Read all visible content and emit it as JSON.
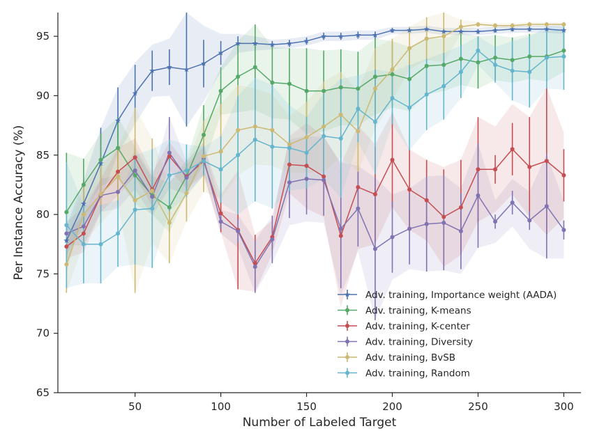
{
  "chart_data": {
    "type": "line",
    "title": "",
    "xlabel": "Number of Labeled Target",
    "ylabel": "Per Instance Accuracy (%)",
    "xlim": [
      5,
      310
    ],
    "ylim": [
      65,
      97
    ],
    "xticks": [
      50,
      100,
      150,
      200,
      250,
      300
    ],
    "yticks": [
      65,
      70,
      75,
      80,
      85,
      90,
      95
    ],
    "grid": false,
    "legend_position": "lower-right",
    "x": [
      10,
      20,
      30,
      40,
      50,
      60,
      70,
      80,
      90,
      100,
      110,
      120,
      130,
      140,
      150,
      160,
      170,
      180,
      190,
      200,
      210,
      220,
      230,
      240,
      250,
      260,
      270,
      280,
      290,
      300
    ],
    "series": [
      {
        "name": "Adv. training, Importance weight (AADA)",
        "color": "#4c72b0",
        "marker": "star",
        "values": [
          77.8,
          80.9,
          84.3,
          87.9,
          90.2,
          92.1,
          92.4,
          92.2,
          92.7,
          93.6,
          94.4,
          94.4,
          94.3,
          94.4,
          94.6,
          95.0,
          95.0,
          95.1,
          95.1,
          95.5,
          95.5,
          95.6,
          95.4,
          95.4,
          95.4,
          95.5,
          95.6,
          95.6,
          95.6,
          95.5
        ],
        "err": [
          1.2,
          2.0,
          3.0,
          2.8,
          2.4,
          1.7,
          1.5,
          4.8,
          2.0,
          1.0,
          0.6,
          0.5,
          0.3,
          0.3,
          0.3,
          0.3,
          0.3,
          0.3,
          0.3,
          0.2,
          0.2,
          0.2,
          0.2,
          0.2,
          0.2,
          0.2,
          0.2,
          0.2,
          0.2,
          0.2
        ],
        "band": [
          1.2,
          2.0,
          3.0,
          2.8,
          2.6,
          2.2,
          2.4,
          4.8,
          3.2,
          1.6,
          0.8,
          0.6,
          0.4,
          0.4,
          0.4,
          0.4,
          0.4,
          0.4,
          0.4,
          0.3,
          0.3,
          0.3,
          0.3,
          0.3,
          0.3,
          0.3,
          0.3,
          0.3,
          0.3,
          0.3
        ]
      },
      {
        "name": "Adv. training, K-means",
        "color": "#55a868",
        "marker": "circle",
        "values": [
          80.2,
          82.5,
          84.6,
          85.6,
          83.3,
          81.6,
          80.6,
          83.2,
          86.7,
          90.4,
          91.6,
          92.4,
          91.1,
          91.0,
          90.4,
          90.4,
          90.7,
          90.6,
          91.6,
          91.8,
          91.4,
          92.5,
          92.6,
          93.1,
          92.8,
          93.2,
          93.0,
          93.3,
          93.3,
          93.8
        ],
        "err": [
          5.0,
          2.2,
          2.2,
          2.6,
          2.4,
          1.6,
          2.1,
          1.4,
          2.5,
          2.0,
          3.0,
          3.6,
          3.0,
          3.0,
          3.6,
          3.4,
          3.2,
          3.1,
          3.2,
          2.8,
          2.7,
          2.4,
          2.2,
          2.2,
          2.2,
          1.9,
          1.9,
          1.9,
          2.1,
          1.8
        ],
        "band": [
          5.0,
          2.2,
          2.2,
          2.6,
          2.4,
          1.6,
          2.1,
          1.4,
          2.5,
          2.0,
          3.0,
          3.6,
          3.0,
          3.0,
          3.6,
          3.4,
          3.2,
          3.1,
          3.2,
          2.8,
          2.7,
          2.4,
          2.2,
          2.2,
          2.2,
          1.9,
          1.9,
          1.9,
          2.1,
          1.8
        ]
      },
      {
        "name": "Adv. training, K-center",
        "color": "#c44e52",
        "marker": "circle",
        "values": [
          77.3,
          78.4,
          81.6,
          83.6,
          84.8,
          82.1,
          84.9,
          83.2,
          84.5,
          80.1,
          78.7,
          75.9,
          78.1,
          84.2,
          84.1,
          83.2,
          78.2,
          82.3,
          81.7,
          84.6,
          82.1,
          81.2,
          79.8,
          80.6,
          83.8,
          83.8,
          85.5,
          84.0,
          84.5,
          83.3
        ],
        "err": [
          1.0,
          1.6,
          1.4,
          2.0,
          1.6,
          1.4,
          1.2,
          1.0,
          1.2,
          1.6,
          5.0,
          2.4,
          1.0,
          1.5,
          0.4,
          0.6,
          1.6,
          1.6,
          4.0,
          4.0,
          3.4,
          3.4,
          4.0,
          4.0,
          4.4,
          1.2,
          2.2,
          4.2,
          6.2,
          2.2
        ],
        "band": [
          1.0,
          1.6,
          1.4,
          2.0,
          1.6,
          1.4,
          1.2,
          1.0,
          1.2,
          1.6,
          5.0,
          2.4,
          1.4,
          2.4,
          3.6,
          3.4,
          6.0,
          5.2,
          4.2,
          4.0,
          3.4,
          3.4,
          4.2,
          4.0,
          4.4,
          3.6,
          3.8,
          4.2,
          6.2,
          3.6
        ]
      },
      {
        "name": "Adv. training, Diversity",
        "color": "#8172b2",
        "marker": "circle",
        "values": [
          78.4,
          79.0,
          81.6,
          81.9,
          83.7,
          81.5,
          85.2,
          83.1,
          84.7,
          79.4,
          78.6,
          75.6,
          77.9,
          82.7,
          83.0,
          82.9,
          78.8,
          80.5,
          77.1,
          78.1,
          78.8,
          79.2,
          79.3,
          78.6,
          81.6,
          79.4,
          81.0,
          79.5,
          80.7,
          78.7
        ],
        "err": [
          1.0,
          1.6,
          1.4,
          1.0,
          1.2,
          1.4,
          3.0,
          1.0,
          1.2,
          0.6,
          1.0,
          2.2,
          2.0,
          3.0,
          3.0,
          3.0,
          5.0,
          3.2,
          6.0,
          3.0,
          3.0,
          4.0,
          4.0,
          3.2,
          4.4,
          0.6,
          1.0,
          0.8,
          4.4,
          0.8
        ],
        "band": [
          1.0,
          1.6,
          1.4,
          1.4,
          1.6,
          1.6,
          3.0,
          1.4,
          1.4,
          1.0,
          1.4,
          2.2,
          2.0,
          3.6,
          3.6,
          3.6,
          5.6,
          3.6,
          6.0,
          3.6,
          3.4,
          4.0,
          4.0,
          3.6,
          4.4,
          1.8,
          2.0,
          2.4,
          4.4,
          2.4
        ]
      },
      {
        "name": "Adv. training, BvSB",
        "color": "#ccb974",
        "marker": "circle",
        "values": [
          75.8,
          80.0,
          81.7,
          83.2,
          81.2,
          82.0,
          79.3,
          81.8,
          84.9,
          85.3,
          87.1,
          87.4,
          87.1,
          85.9,
          86.5,
          87.4,
          88.4,
          87.0,
          90.6,
          92.2,
          94.0,
          94.8,
          95.0,
          95.8,
          96.0,
          95.9,
          95.9,
          96.0,
          96.0,
          96.0
        ],
        "err": [
          2.4,
          2.4,
          2.4,
          2.4,
          7.8,
          4.4,
          3.4,
          2.4,
          3.0,
          4.0,
          3.8,
          3.2,
          3.0,
          2.4,
          3.0,
          3.8,
          3.6,
          3.4,
          3.4,
          2.6,
          1.8,
          1.8,
          2.2,
          0.6,
          0.2,
          0.2,
          0.2,
          0.2,
          0.2,
          0.2
        ],
        "band": [
          2.4,
          2.4,
          2.4,
          2.4,
          7.8,
          4.4,
          3.4,
          2.4,
          3.0,
          4.0,
          3.8,
          3.2,
          3.0,
          2.4,
          3.0,
          3.8,
          3.6,
          3.4,
          3.4,
          2.6,
          1.8,
          1.8,
          2.2,
          0.6,
          0.2,
          0.2,
          0.2,
          0.2,
          0.2,
          0.2
        ]
      },
      {
        "name": "Adv. training, Random",
        "color": "#64b5cd",
        "marker": "circle",
        "values": [
          79.1,
          77.5,
          77.5,
          78.4,
          80.4,
          80.5,
          83.3,
          83.7,
          84.5,
          83.8,
          85.0,
          86.3,
          85.7,
          85.6,
          85.2,
          86.6,
          86.4,
          88.9,
          87.8,
          89.8,
          89.0,
          90.1,
          90.8,
          92.0,
          93.8,
          92.6,
          92.1,
          92.0,
          93.2,
          93.3
        ],
        "err": [
          5.3,
          3.3,
          3.3,
          2.8,
          4.6,
          5.0,
          3.0,
          2.2,
          1.2,
          2.8,
          5.0,
          5.2,
          5.2,
          3.6,
          3.0,
          3.6,
          5.0,
          2.8,
          4.4,
          2.2,
          3.6,
          3.0,
          2.8,
          2.2,
          1.2,
          1.5,
          2.5,
          3.0,
          2.6,
          2.8
        ],
        "band": [
          5.3,
          3.3,
          3.3,
          2.8,
          4.6,
          5.0,
          3.0,
          2.2,
          1.2,
          2.8,
          5.0,
          5.2,
          5.2,
          3.6,
          3.0,
          3.6,
          5.0,
          2.8,
          4.4,
          2.2,
          3.6,
          3.0,
          2.8,
          2.2,
          1.2,
          1.5,
          2.5,
          3.0,
          2.6,
          2.8
        ]
      }
    ]
  }
}
